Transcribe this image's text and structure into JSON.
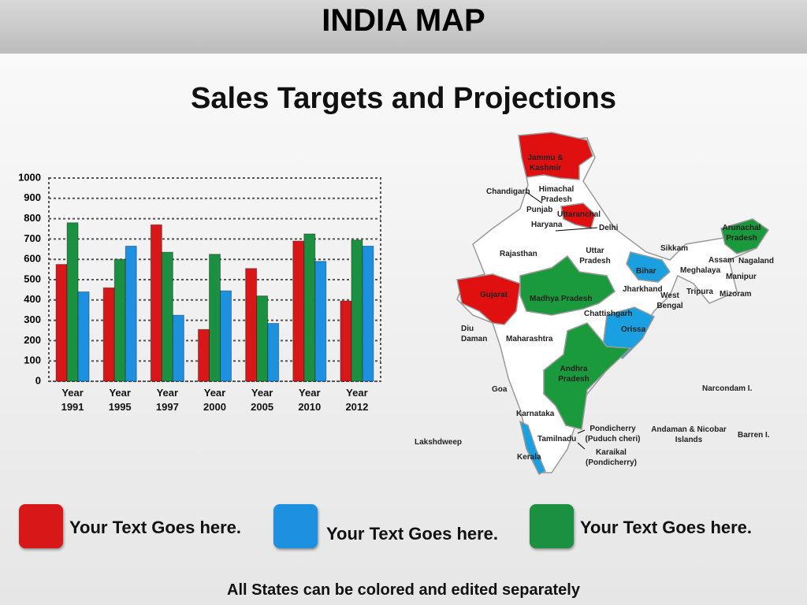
{
  "header": {
    "title": "INDIA MAP"
  },
  "footer": {
    "note": "All States can be colored and edited separately"
  },
  "chart_data": {
    "type": "bar",
    "title": "Sales Targets and Projections",
    "categories": [
      "Year 1991",
      "Year 1995",
      "Year 1997",
      "Year 2000",
      "Year 2005",
      "Year 2010",
      "Year 2012"
    ],
    "series": [
      {
        "name": "Your Text Goes here.",
        "color": "#d81818",
        "values": [
          575,
          460,
          770,
          255,
          555,
          690,
          395
        ]
      },
      {
        "name": "Your Text Goes here.",
        "color": "#1a9040",
        "values": [
          780,
          600,
          635,
          625,
          420,
          725,
          695
        ]
      },
      {
        "name": "Your Text Goes here.",
        "color": "#1e90e0",
        "values": [
          440,
          665,
          325,
          445,
          285,
          590,
          665
        ]
      }
    ],
    "ylim": [
      0,
      1000
    ],
    "yticks": [
      0,
      100,
      200,
      300,
      400,
      500,
      600,
      700,
      800,
      900,
      1000
    ],
    "grid": true
  },
  "map": {
    "labels": [
      "Jammu & Kashmir",
      "Chandigarh",
      "Himachal Pradesh",
      "Punjab",
      "Uttaranchal",
      "Haryana",
      "Delhi",
      "Arunachal Pradesh",
      "Sikkam",
      "Rajasthan",
      "Uttar Pradesh",
      "Assam",
      "Nagaland",
      "Bihar",
      "Meghalaya",
      "Manipur",
      "Jharkhand",
      "Tripura",
      "West Bengal",
      "Mizoram",
      "Gujarat",
      "Madhya Pradesh",
      "Chattishgarh",
      "Orissa",
      "Diu Daman",
      "Maharashtra",
      "Andhra Pradesh",
      "Goa",
      "Narcondam I.",
      "Karnataka",
      "Pondicherry (Puduch cheri)",
      "Andaman & Nicobar Islands",
      "Barren I.",
      "Tamilnadu",
      "Lakshdweep",
      "Karaikal (Pondicherry)",
      "Kerala"
    ]
  }
}
